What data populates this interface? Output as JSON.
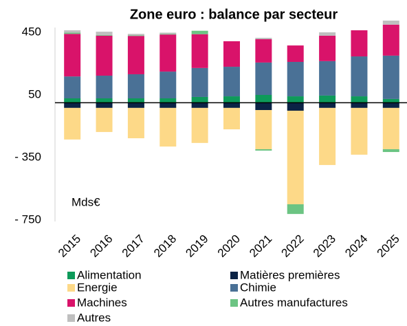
{
  "chart_data": {
    "type": "stacked_bar",
    "title": "Zone euro : balance par secteur",
    "annotation": "Mds€",
    "categories": [
      "2015",
      "2016",
      "2017",
      "2018",
      "2019",
      "2020",
      "2021",
      "2022",
      "2023",
      "2024",
      "2025"
    ],
    "series": [
      {
        "name": "Alimentation",
        "color": "#0e9a5a",
        "values": [
          28,
          28,
          28,
          28,
          37,
          41,
          50,
          41,
          46,
          41,
          24
        ]
      },
      {
        "name": "Matières premières",
        "color": "#0b2345",
        "values": [
          -33,
          -33,
          -33,
          -33,
          -33,
          -33,
          -47,
          -51,
          -33,
          -33,
          -33
        ]
      },
      {
        "name": "Energie",
        "color": "#fdd988",
        "values": [
          -202,
          -154,
          -194,
          -247,
          -224,
          -137,
          -250,
          -598,
          -365,
          -299,
          -264
        ]
      },
      {
        "name": "Chimie",
        "color": "#4a7196",
        "values": [
          140,
          145,
          154,
          171,
          185,
          189,
          207,
          220,
          220,
          255,
          277
        ]
      },
      {
        "name": "Machines",
        "color": "#d9136a",
        "values": [
          272,
          255,
          245,
          237,
          216,
          163,
          149,
          105,
          162,
          167,
          198
        ]
      },
      {
        "name": "Autres manufactures",
        "color": "#6cc483",
        "values": [
          8,
          4,
          4,
          4,
          22,
          0,
          -9,
          -62,
          0,
          0,
          -18
        ]
      },
      {
        "name": "Autres",
        "color": "#bfbfbf",
        "values": [
          15,
          22,
          9,
          8,
          0,
          0,
          9,
          0,
          22,
          0,
          26
        ]
      }
    ],
    "ylim": [
      -750,
      480
    ],
    "yticks": [
      {
        "value": -750,
        "label": "- 750"
      },
      {
        "value": -350,
        "label": "- 350"
      },
      50,
      450
    ]
  }
}
